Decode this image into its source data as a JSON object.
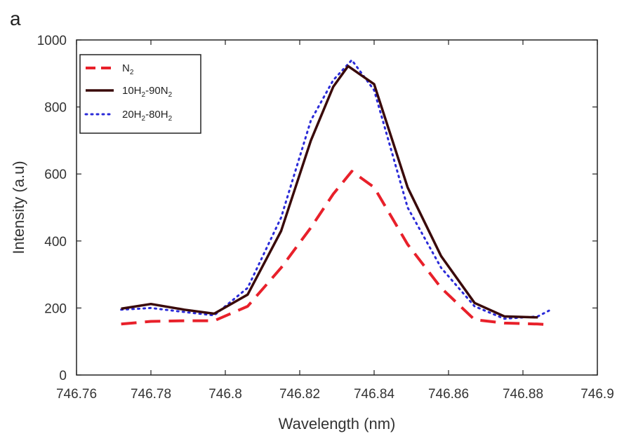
{
  "panel_label": "a",
  "chart_data": {
    "type": "line",
    "xlabel": "Wavelength (nm)",
    "ylabel": "Intensity (a.u)",
    "xlim": [
      746.76,
      746.9
    ],
    "ylim": [
      0,
      1000
    ],
    "xticks": [
      746.76,
      746.78,
      746.8,
      746.82,
      746.84,
      746.86,
      746.88,
      746.9
    ],
    "xtick_labels": [
      "746.76",
      "746.78",
      "746.8",
      "746.82",
      "746.84",
      "746.86",
      "746.88",
      "746.9"
    ],
    "yticks": [
      0,
      200,
      400,
      600,
      800,
      1000
    ],
    "ytick_labels": [
      "0",
      "200",
      "400",
      "600",
      "800",
      "1000"
    ],
    "grid": false,
    "legend_position": "top-left",
    "series": [
      {
        "name": "N2",
        "legend_label": {
          "main": "N",
          "sub": "2",
          "rest": ""
        },
        "color": "#e8202a",
        "style": "dashed",
        "x": [
          746.772,
          746.78,
          746.789,
          746.797,
          746.806,
          746.815,
          746.823,
          746.829,
          746.834,
          746.84,
          746.849,
          746.858,
          746.867,
          746.875,
          746.884,
          746.887
        ],
        "y": [
          152,
          160,
          162,
          162,
          205,
          320,
          440,
          540,
          608,
          560,
          390,
          260,
          165,
          155,
          152,
          150
        ]
      },
      {
        "name": "10H2-90N2",
        "legend_label": {
          "parts": [
            "10H",
            "2",
            "-90N",
            "2"
          ]
        },
        "color": "#3a0a0a",
        "style": "solid",
        "x": [
          746.772,
          746.78,
          746.789,
          746.797,
          746.806,
          746.815,
          746.823,
          746.829,
          746.833,
          746.84,
          746.849,
          746.858,
          746.867,
          746.875,
          746.884
        ],
        "y": [
          198,
          212,
          195,
          183,
          240,
          430,
          700,
          860,
          922,
          868,
          560,
          355,
          215,
          175,
          172
        ]
      },
      {
        "name": "20H2-80H2",
        "legend_label": {
          "parts": [
            "20H",
            "2",
            "-80H",
            "2"
          ]
        },
        "color": "#2a2ad8",
        "style": "dotted",
        "x": [
          746.772,
          746.78,
          746.789,
          746.797,
          746.806,
          746.815,
          746.823,
          746.829,
          746.834,
          746.84,
          746.849,
          746.858,
          746.867,
          746.875,
          746.884,
          746.887
        ],
        "y": [
          195,
          200,
          188,
          178,
          260,
          470,
          760,
          880,
          940,
          850,
          500,
          320,
          205,
          168,
          175,
          192
        ]
      }
    ]
  }
}
